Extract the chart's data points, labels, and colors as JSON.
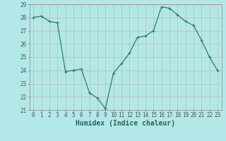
{
  "x": [
    0,
    1,
    2,
    3,
    4,
    5,
    6,
    7,
    8,
    9,
    10,
    11,
    12,
    13,
    14,
    15,
    16,
    17,
    18,
    19,
    20,
    21,
    22,
    23
  ],
  "y": [
    28.0,
    28.1,
    27.7,
    27.6,
    23.9,
    24.0,
    24.1,
    22.3,
    21.9,
    21.1,
    23.8,
    24.5,
    25.3,
    26.5,
    26.6,
    27.0,
    28.8,
    28.7,
    28.2,
    27.7,
    27.4,
    26.3,
    25.0,
    24.0
  ],
  "line_color": "#2e7d6e",
  "marker": "+",
  "marker_size": 3,
  "marker_linewidth": 0.8,
  "line_width": 0.9,
  "background_color": "#b3e8e8",
  "grid_color": "#c0b8b8",
  "xlabel": "Humidex (Indice chaleur)",
  "ylim": [
    21,
    29
  ],
  "xlim": [
    -0.5,
    23.5
  ],
  "yticks": [
    21,
    22,
    23,
    24,
    25,
    26,
    27,
    28,
    29
  ],
  "xticks": [
    0,
    1,
    2,
    3,
    4,
    5,
    6,
    7,
    8,
    9,
    10,
    11,
    12,
    13,
    14,
    15,
    16,
    17,
    18,
    19,
    20,
    21,
    22,
    23
  ],
  "tick_fontsize": 5.5,
  "xlabel_fontsize": 7,
  "spine_color": "#888888"
}
